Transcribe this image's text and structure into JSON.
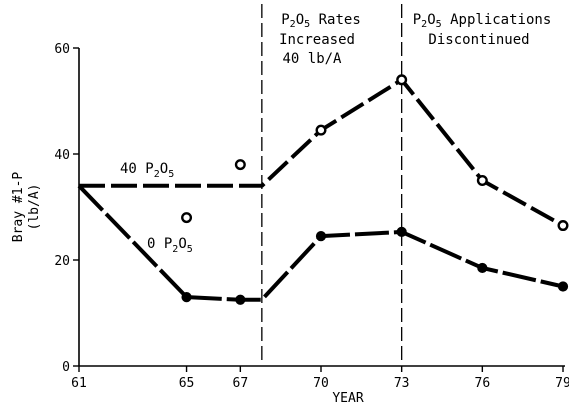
{
  "chart_data": {
    "type": "line",
    "xlabel": "YEAR",
    "ylabel_line1": "Bray #1-P",
    "ylabel_line2": "(lb/A)",
    "xticks": [
      "61",
      "65",
      "67",
      "70",
      "73",
      "76",
      "79"
    ],
    "yticks": [
      "0",
      "20",
      "40",
      "60"
    ],
    "xlim": [
      61,
      79
    ],
    "ylim": [
      0,
      60
    ],
    "annotations": {
      "rates_increased": {
        "line1": "P",
        "sub1": "2",
        "mid": "O",
        "sub2": "5",
        "tail": " Rates",
        "line2": "Increased",
        "line3": "40 lb/A",
        "x": 67.8
      },
      "discontinued": {
        "line1": "P",
        "sub1": "2",
        "mid": "O",
        "sub2": "5",
        "tail": " Applications",
        "line2": "Discontinued",
        "x": 73
      }
    },
    "series": [
      {
        "label_prefix": "40 P",
        "label_sub1": "2",
        "label_mid": "O",
        "label_sub2": "5",
        "marker": "open",
        "points": [
          [
            61,
            34
          ],
          [
            67.8,
            34
          ],
          [
            70,
            44.5
          ],
          [
            73,
            54
          ],
          [
            76,
            35
          ],
          [
            79,
            26.5
          ]
        ],
        "markers": [
          [
            70,
            44.5
          ],
          [
            73,
            54
          ],
          [
            76,
            35
          ],
          [
            79,
            26.5
          ]
        ]
      },
      {
        "label_prefix": "0 P",
        "label_sub1": "2",
        "label_mid": "O",
        "label_sub2": "5",
        "marker": "filled",
        "points": [
          [
            61,
            34
          ],
          [
            65,
            13
          ],
          [
            67,
            12.5
          ],
          [
            67.8,
            12.5
          ],
          [
            70,
            24.5
          ],
          [
            73,
            25.3
          ],
          [
            76,
            18.5
          ],
          [
            79,
            15
          ]
        ],
        "markers": [
          [
            65,
            13
          ],
          [
            67,
            12.5
          ],
          [
            70,
            24.5
          ],
          [
            73,
            25.3
          ],
          [
            76,
            18.5
          ],
          [
            79,
            15
          ]
        ]
      }
    ],
    "extra_points": [
      [
        65,
        28
      ],
      [
        67,
        38
      ]
    ]
  }
}
